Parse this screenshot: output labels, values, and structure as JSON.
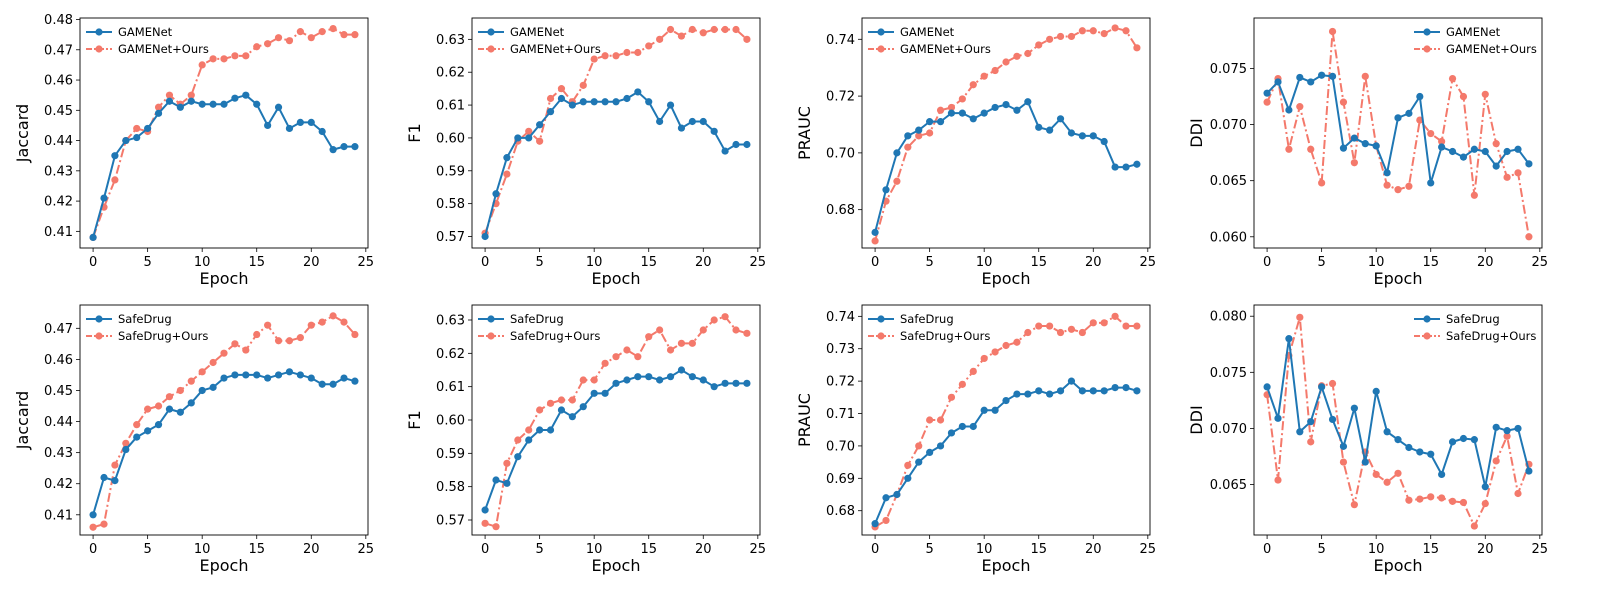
{
  "colors": {
    "baseline": "#1f77b4",
    "ours": "#f4796b"
  },
  "chart_data": [
    {
      "type": "line",
      "xlabel": "Epoch",
      "ylabel": "Jaccard",
      "xlim": [
        -1.2,
        25.2
      ],
      "ylim": [
        0.4045,
        0.4805
      ],
      "xticks": [
        0,
        5,
        10,
        15,
        20,
        25
      ],
      "yticks": [
        0.41,
        0.42,
        0.43,
        0.44,
        0.45,
        0.46,
        0.47,
        0.48
      ],
      "legend_position": "upper-left",
      "x": [
        0,
        1,
        2,
        3,
        4,
        5,
        6,
        7,
        8,
        9,
        10,
        11,
        12,
        13,
        14,
        15,
        16,
        17,
        18,
        19,
        20,
        21,
        22,
        23,
        24
      ],
      "series": [
        {
          "name": "GAMENet",
          "style": "solid",
          "values": [
            0.408,
            0.421,
            0.435,
            0.44,
            0.441,
            0.444,
            0.449,
            0.453,
            0.451,
            0.453,
            0.452,
            0.452,
            0.452,
            0.454,
            0.455,
            0.452,
            0.445,
            0.451,
            0.444,
            0.446,
            0.446,
            0.443,
            0.437,
            0.438,
            0.438
          ]
        },
        {
          "name": "GAMENet+Ours",
          "style": "dashdot",
          "values": [
            0.408,
            0.418,
            0.427,
            0.44,
            0.444,
            0.443,
            0.451,
            0.455,
            0.452,
            0.455,
            0.465,
            0.467,
            0.467,
            0.468,
            0.468,
            0.471,
            0.472,
            0.474,
            0.473,
            0.476,
            0.474,
            0.476,
            0.477,
            0.475,
            0.475
          ]
        }
      ]
    },
    {
      "type": "line",
      "xlabel": "Epoch",
      "ylabel": "F1",
      "xlim": [
        -1.2,
        25.2
      ],
      "ylim": [
        0.5665,
        0.6365
      ],
      "xticks": [
        0,
        5,
        10,
        15,
        20,
        25
      ],
      "yticks": [
        0.57,
        0.58,
        0.59,
        0.6,
        0.61,
        0.62,
        0.63
      ],
      "legend_position": "upper-left",
      "x": [
        0,
        1,
        2,
        3,
        4,
        5,
        6,
        7,
        8,
        9,
        10,
        11,
        12,
        13,
        14,
        15,
        16,
        17,
        18,
        19,
        20,
        21,
        22,
        23,
        24
      ],
      "series": [
        {
          "name": "GAMENet",
          "style": "solid",
          "values": [
            0.57,
            0.583,
            0.594,
            0.6,
            0.6,
            0.604,
            0.608,
            0.612,
            0.61,
            0.611,
            0.611,
            0.611,
            0.611,
            0.612,
            0.614,
            0.611,
            0.605,
            0.61,
            0.603,
            0.605,
            0.605,
            0.602,
            0.596,
            0.598,
            0.598
          ]
        },
        {
          "name": "GAMENet+Ours",
          "style": "dashdot",
          "values": [
            0.571,
            0.58,
            0.589,
            0.599,
            0.602,
            0.599,
            0.612,
            0.615,
            0.611,
            0.616,
            0.624,
            0.625,
            0.625,
            0.626,
            0.626,
            0.628,
            0.63,
            0.633,
            0.631,
            0.633,
            0.632,
            0.633,
            0.633,
            0.633,
            0.63
          ]
        }
      ]
    },
    {
      "type": "line",
      "xlabel": "Epoch",
      "ylabel": "PRAUC",
      "xlim": [
        -1.2,
        25.2
      ],
      "ylim": [
        0.6665,
        0.7475
      ],
      "xticks": [
        0,
        5,
        10,
        15,
        20,
        25
      ],
      "yticks": [
        0.68,
        0.7,
        0.72,
        0.74
      ],
      "legend_position": "upper-left",
      "x": [
        0,
        1,
        2,
        3,
        4,
        5,
        6,
        7,
        8,
        9,
        10,
        11,
        12,
        13,
        14,
        15,
        16,
        17,
        18,
        19,
        20,
        21,
        22,
        23,
        24
      ],
      "series": [
        {
          "name": "GAMENet",
          "style": "solid",
          "values": [
            0.672,
            0.687,
            0.7,
            0.706,
            0.708,
            0.711,
            0.711,
            0.714,
            0.714,
            0.712,
            0.714,
            0.716,
            0.717,
            0.715,
            0.718,
            0.709,
            0.708,
            0.712,
            0.707,
            0.706,
            0.706,
            0.704,
            0.695,
            0.695,
            0.696
          ]
        },
        {
          "name": "GAMENet+Ours",
          "style": "dashdot",
          "values": [
            0.669,
            0.683,
            0.69,
            0.702,
            0.706,
            0.707,
            0.715,
            0.716,
            0.719,
            0.724,
            0.727,
            0.729,
            0.732,
            0.734,
            0.735,
            0.738,
            0.74,
            0.741,
            0.741,
            0.743,
            0.743,
            0.742,
            0.744,
            0.743,
            0.737
          ]
        }
      ]
    },
    {
      "type": "line",
      "xlabel": "Epoch",
      "ylabel": "DDI",
      "xlim": [
        -1.2,
        25.2
      ],
      "ylim": [
        0.059,
        0.0795
      ],
      "xticks": [
        0,
        5,
        10,
        15,
        20,
        25
      ],
      "yticks": [
        0.06,
        0.065,
        0.07,
        0.075
      ],
      "legend_position": "upper-right",
      "x": [
        0,
        1,
        2,
        3,
        4,
        5,
        6,
        7,
        8,
        9,
        10,
        11,
        12,
        13,
        14,
        15,
        16,
        17,
        18,
        19,
        20,
        21,
        22,
        23,
        24
      ],
      "series": [
        {
          "name": "GAMENet",
          "style": "solid",
          "values": [
            0.0728,
            0.0738,
            0.0713,
            0.0742,
            0.0738,
            0.0744,
            0.0743,
            0.0679,
            0.0688,
            0.0683,
            0.0681,
            0.0657,
            0.0706,
            0.071,
            0.0725,
            0.0648,
            0.068,
            0.0676,
            0.0671,
            0.0678,
            0.0676,
            0.0663,
            0.0676,
            0.0678,
            0.0665
          ]
        },
        {
          "name": "GAMENet+Ours",
          "style": "dashdot",
          "values": [
            0.072,
            0.0741,
            0.0678,
            0.0716,
            0.0678,
            0.0648,
            0.0783,
            0.072,
            0.0666,
            0.0743,
            0.0681,
            0.0646,
            0.0642,
            0.0645,
            0.0704,
            0.0692,
            0.0685,
            0.0741,
            0.0725,
            0.0637,
            0.0727,
            0.0683,
            0.0653,
            0.0657,
            0.06
          ]
        }
      ]
    },
    {
      "type": "line",
      "xlabel": "Epoch",
      "ylabel": "Jaccard",
      "xlim": [
        -1.2,
        25.2
      ],
      "ylim": [
        0.4035,
        0.4775
      ],
      "xticks": [
        0,
        5,
        10,
        15,
        20,
        25
      ],
      "yticks": [
        0.41,
        0.42,
        0.43,
        0.44,
        0.45,
        0.46,
        0.47
      ],
      "legend_position": "upper-left",
      "x": [
        0,
        1,
        2,
        3,
        4,
        5,
        6,
        7,
        8,
        9,
        10,
        11,
        12,
        13,
        14,
        15,
        16,
        17,
        18,
        19,
        20,
        21,
        22,
        23,
        24
      ],
      "series": [
        {
          "name": "SafeDrug",
          "style": "solid",
          "values": [
            0.41,
            0.422,
            0.421,
            0.431,
            0.435,
            0.437,
            0.439,
            0.444,
            0.443,
            0.446,
            0.45,
            0.451,
            0.454,
            0.455,
            0.455,
            0.455,
            0.454,
            0.455,
            0.456,
            0.455,
            0.454,
            0.452,
            0.452,
            0.454,
            0.453
          ]
        },
        {
          "name": "SafeDrug+Ours",
          "style": "dashdot",
          "values": [
            0.406,
            0.407,
            0.426,
            0.433,
            0.439,
            0.444,
            0.445,
            0.448,
            0.45,
            0.453,
            0.456,
            0.459,
            0.462,
            0.465,
            0.463,
            0.468,
            0.471,
            0.466,
            0.466,
            0.467,
            0.471,
            0.472,
            0.474,
            0.472,
            0.468
          ]
        }
      ]
    },
    {
      "type": "line",
      "xlabel": "Epoch",
      "ylabel": "F1",
      "xlim": [
        -1.2,
        25.2
      ],
      "ylim": [
        0.5655,
        0.6345
      ],
      "xticks": [
        0,
        5,
        10,
        15,
        20,
        25
      ],
      "yticks": [
        0.57,
        0.58,
        0.59,
        0.6,
        0.61,
        0.62,
        0.63
      ],
      "legend_position": "upper-left",
      "x": [
        0,
        1,
        2,
        3,
        4,
        5,
        6,
        7,
        8,
        9,
        10,
        11,
        12,
        13,
        14,
        15,
        16,
        17,
        18,
        19,
        20,
        21,
        22,
        23,
        24
      ],
      "series": [
        {
          "name": "SafeDrug",
          "style": "solid",
          "values": [
            0.573,
            0.582,
            0.581,
            0.589,
            0.594,
            0.597,
            0.597,
            0.603,
            0.601,
            0.604,
            0.608,
            0.608,
            0.611,
            0.612,
            0.613,
            0.613,
            0.612,
            0.613,
            0.615,
            0.613,
            0.612,
            0.61,
            0.611,
            0.611,
            0.611
          ]
        },
        {
          "name": "SafeDrug+Ours",
          "style": "dashdot",
          "values": [
            0.569,
            0.568,
            0.587,
            0.594,
            0.597,
            0.603,
            0.605,
            0.606,
            0.606,
            0.612,
            0.612,
            0.617,
            0.619,
            0.621,
            0.619,
            0.625,
            0.627,
            0.621,
            0.623,
            0.623,
            0.627,
            0.63,
            0.631,
            0.627,
            0.626
          ]
        }
      ]
    },
    {
      "type": "line",
      "xlabel": "Epoch",
      "ylabel": "PRAUC",
      "xlim": [
        -1.2,
        25.2
      ],
      "ylim": [
        0.6725,
        0.7435
      ],
      "xticks": [
        0,
        5,
        10,
        15,
        20,
        25
      ],
      "yticks": [
        0.68,
        0.69,
        0.7,
        0.71,
        0.72,
        0.73,
        0.74
      ],
      "legend_position": "upper-left",
      "x": [
        0,
        1,
        2,
        3,
        4,
        5,
        6,
        7,
        8,
        9,
        10,
        11,
        12,
        13,
        14,
        15,
        16,
        17,
        18,
        19,
        20,
        21,
        22,
        23,
        24
      ],
      "series": [
        {
          "name": "SafeDrug",
          "style": "solid",
          "values": [
            0.676,
            0.684,
            0.685,
            0.69,
            0.695,
            0.698,
            0.7,
            0.704,
            0.706,
            0.706,
            0.711,
            0.711,
            0.714,
            0.716,
            0.716,
            0.717,
            0.716,
            0.717,
            0.72,
            0.717,
            0.717,
            0.717,
            0.718,
            0.718,
            0.717
          ]
        },
        {
          "name": "SafeDrug+Ours",
          "style": "dashdot",
          "values": [
            0.675,
            0.677,
            0.685,
            0.694,
            0.7,
            0.708,
            0.708,
            0.715,
            0.719,
            0.723,
            0.727,
            0.729,
            0.731,
            0.732,
            0.735,
            0.737,
            0.737,
            0.735,
            0.736,
            0.735,
            0.738,
            0.738,
            0.74,
            0.737,
            0.737
          ]
        }
      ]
    },
    {
      "type": "line",
      "xlabel": "Epoch",
      "ylabel": "DDI",
      "xlim": [
        -1.2,
        25.2
      ],
      "ylim": [
        0.0605,
        0.081
      ],
      "xticks": [
        0,
        5,
        10,
        15,
        20,
        25
      ],
      "yticks": [
        0.065,
        0.07,
        0.075,
        0.08
      ],
      "legend_position": "upper-right",
      "x": [
        0,
        1,
        2,
        3,
        4,
        5,
        6,
        7,
        8,
        9,
        10,
        11,
        12,
        13,
        14,
        15,
        16,
        17,
        18,
        19,
        20,
        21,
        22,
        23,
        24
      ],
      "series": [
        {
          "name": "SafeDrug",
          "style": "solid",
          "values": [
            0.0737,
            0.0709,
            0.078,
            0.0697,
            0.0706,
            0.0737,
            0.0708,
            0.0684,
            0.0718,
            0.067,
            0.0733,
            0.0697,
            0.069,
            0.0683,
            0.0679,
            0.0677,
            0.0659,
            0.0688,
            0.0691,
            0.069,
            0.0648,
            0.0701,
            0.0698,
            0.07,
            0.0662
          ]
        },
        {
          "name": "SafeDrug+Ours",
          "style": "dashdot",
          "values": [
            0.073,
            0.0654,
            0.0765,
            0.0799,
            0.0688,
            0.0738,
            0.074,
            0.067,
            0.0632,
            0.0679,
            0.0659,
            0.0652,
            0.066,
            0.0636,
            0.0637,
            0.0639,
            0.0638,
            0.0635,
            0.0634,
            0.0613,
            0.0633,
            0.0671,
            0.0693,
            0.0642,
            0.0668
          ]
        }
      ]
    }
  ]
}
